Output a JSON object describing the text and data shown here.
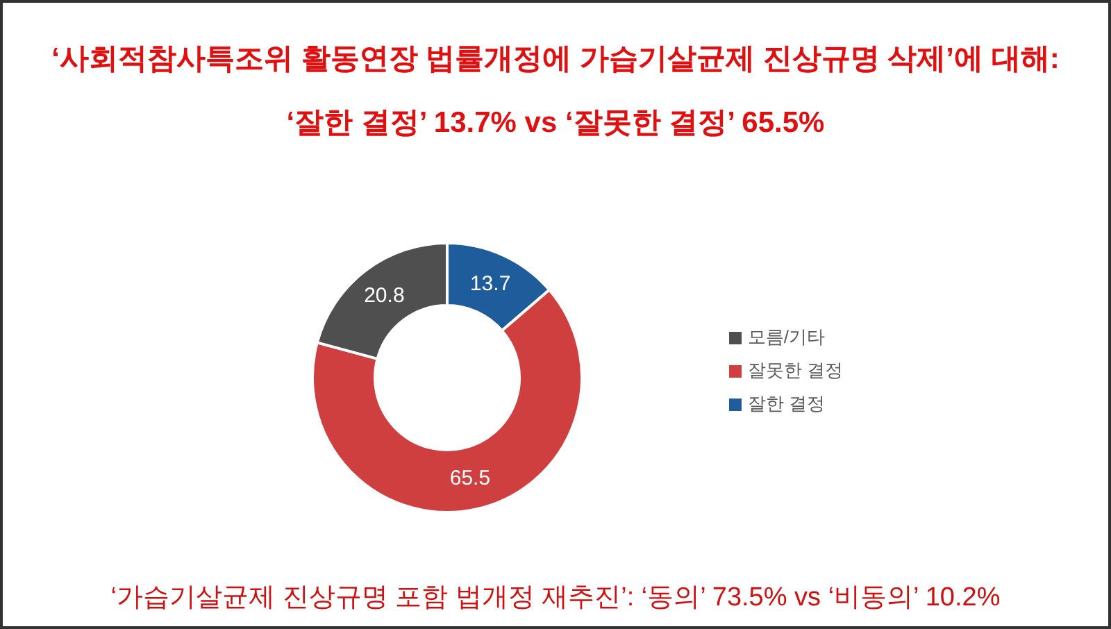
{
  "chart_data": {
    "type": "donut",
    "title": "‘사회적참사특조위 활동연장 법률개정에 가습기살균제 진상규명 삭제’에 대해:",
    "subtitle": "‘잘한 결정’ 13.7% vs ‘잘못한 결정’ 65.5%",
    "categories": [
      "잘한 결정",
      "잘못한 결정",
      "모름/기타"
    ],
    "values": [
      13.7,
      65.5,
      20.8
    ],
    "colors": [
      "#1f5c9c",
      "#d03f3f",
      "#4f4f4f"
    ],
    "data_labels": true,
    "legend": "right",
    "annotations": [
      "‘가습기살균제 진상규명 포함 법개정 재추진’: ‘동의’ 73.5% vs ‘비동의’ 10.2%"
    ]
  }
}
